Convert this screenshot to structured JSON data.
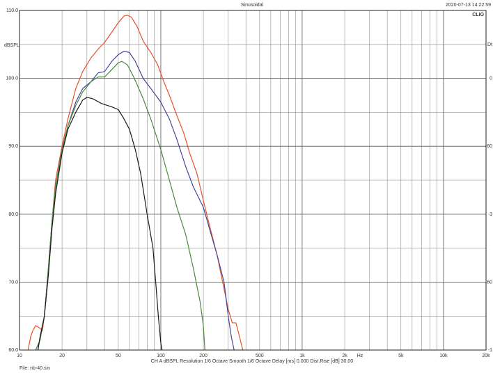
{
  "header": {
    "title": "Sinusoidal",
    "timestamp": "2020-07-13 14:22:59",
    "brand": "CLIO"
  },
  "footer": {
    "settings": "CH A   dBSPL   Resolution 1/6 Octave   Smooth 1/6 Octave   Delay [ms] 0.000   Dist.Rise [dB] 30.00",
    "file": "File: nb-40.sin"
  },
  "chart_data": {
    "type": "line",
    "title": "Sinusoidal",
    "xlabel": "Hz",
    "ylabel": "dBSPL",
    "xscale": "log",
    "xlim": [
      10,
      20000
    ],
    "ylim": [
      60,
      110
    ],
    "grid": true,
    "x_tick_labels": [
      {
        "value": 10,
        "label": "10"
      },
      {
        "value": 20,
        "label": "20"
      },
      {
        "value": 50,
        "label": "50"
      },
      {
        "value": 100,
        "label": "100"
      },
      {
        "value": 200,
        "label": "200"
      },
      {
        "value": 500,
        "label": "500"
      },
      {
        "value": 1000,
        "label": "1k"
      },
      {
        "value": 2000,
        "label": "2k"
      },
      {
        "value": 5000,
        "label": "5k"
      },
      {
        "value": 10000,
        "label": "10k"
      },
      {
        "value": 20000,
        "label": "20k"
      }
    ],
    "y_tick_labels": [
      {
        "value": 60,
        "label": "60.0"
      },
      {
        "value": 70,
        "label": "70.0"
      },
      {
        "value": 80,
        "label": "80.0"
      },
      {
        "value": 90,
        "label": "90.0"
      },
      {
        "value": 100,
        "label": "100.0"
      },
      {
        "value": 110,
        "label": "110.0"
      }
    ],
    "right_axis_labels": [
      {
        "value": 105,
        "label": "Dt"
      },
      {
        "value": 100,
        "label": "0"
      },
      {
        "value": 90,
        "label": "-60"
      },
      {
        "value": 80,
        "label": "-3"
      },
      {
        "value": 70,
        "label": "-60"
      },
      {
        "value": 60,
        "label": "-1"
      }
    ],
    "series": [
      {
        "color": "#e8502a",
        "points": [
          [
            11.5,
            60
          ],
          [
            12,
            62
          ],
          [
            12.5,
            63
          ],
          [
            13,
            63.6
          ],
          [
            14,
            63.2
          ],
          [
            14.5,
            62.8
          ],
          [
            15,
            65
          ],
          [
            16,
            72
          ],
          [
            17,
            79
          ],
          [
            18,
            85
          ],
          [
            20,
            90
          ],
          [
            22,
            94
          ],
          [
            25,
            98.5
          ],
          [
            28,
            101
          ],
          [
            32,
            103
          ],
          [
            36,
            104.3
          ],
          [
            40,
            105.3
          ],
          [
            45,
            106.8
          ],
          [
            50,
            108.2
          ],
          [
            55,
            109.2
          ],
          [
            58,
            109.3
          ],
          [
            62,
            109
          ],
          [
            68,
            107.6
          ],
          [
            75,
            105.5
          ],
          [
            85,
            103.8
          ],
          [
            95,
            102
          ],
          [
            105,
            99.5
          ],
          [
            115,
            97.5
          ],
          [
            130,
            94.5
          ],
          [
            145,
            92
          ],
          [
            160,
            89
          ],
          [
            180,
            86
          ],
          [
            200,
            82
          ],
          [
            220,
            78.5
          ],
          [
            250,
            74
          ],
          [
            280,
            69
          ],
          [
            300,
            66
          ],
          [
            320,
            64
          ],
          [
            340,
            64
          ],
          [
            360,
            62
          ],
          [
            380,
            60
          ]
        ]
      },
      {
        "color": "#45459a",
        "points": [
          [
            13.5,
            60
          ],
          [
            14,
            62
          ],
          [
            15,
            65
          ],
          [
            16,
            72
          ],
          [
            17,
            79
          ],
          [
            18,
            84
          ],
          [
            20,
            89.5
          ],
          [
            22,
            93
          ],
          [
            25,
            96.5
          ],
          [
            28,
            98.5
          ],
          [
            32,
            99.5
          ],
          [
            36,
            100.8
          ],
          [
            40,
            101
          ],
          [
            45,
            102.5
          ],
          [
            50,
            103.5
          ],
          [
            55,
            104
          ],
          [
            60,
            103.8
          ],
          [
            66,
            102.5
          ],
          [
            75,
            100
          ],
          [
            85,
            98.5
          ],
          [
            100,
            96.5
          ],
          [
            115,
            94
          ],
          [
            130,
            91
          ],
          [
            150,
            87
          ],
          [
            170,
            84
          ],
          [
            200,
            81
          ],
          [
            220,
            78
          ],
          [
            250,
            74
          ],
          [
            280,
            70
          ],
          [
            300,
            65
          ],
          [
            315,
            62
          ],
          [
            330,
            60
          ]
        ]
      },
      {
        "color": "#4a8a3a",
        "points": [
          [
            13,
            60
          ],
          [
            14,
            61.5
          ],
          [
            15,
            65
          ],
          [
            16,
            72
          ],
          [
            17,
            79
          ],
          [
            18,
            84
          ],
          [
            20,
            89.5
          ],
          [
            22,
            93
          ],
          [
            25,
            96
          ],
          [
            28,
            98
          ],
          [
            32,
            99.5
          ],
          [
            36,
            100.2
          ],
          [
            40,
            100.2
          ],
          [
            45,
            101.3
          ],
          [
            50,
            102.3
          ],
          [
            53,
            102.5
          ],
          [
            58,
            102
          ],
          [
            65,
            100
          ],
          [
            75,
            97
          ],
          [
            85,
            94
          ],
          [
            100,
            89.5
          ],
          [
            115,
            85
          ],
          [
            130,
            81
          ],
          [
            150,
            77
          ],
          [
            170,
            72
          ],
          [
            190,
            67
          ],
          [
            200,
            63.5
          ],
          [
            205,
            60
          ]
        ]
      },
      {
        "color": "#1a1a1a",
        "points": [
          [
            13.5,
            60
          ],
          [
            14,
            62
          ],
          [
            15,
            65
          ],
          [
            16,
            71
          ],
          [
            17,
            78
          ],
          [
            18,
            83
          ],
          [
            20,
            89
          ],
          [
            22,
            92.5
          ],
          [
            25,
            95
          ],
          [
            28,
            96.8
          ],
          [
            30,
            97.2
          ],
          [
            33,
            97
          ],
          [
            38,
            96.3
          ],
          [
            45,
            95.8
          ],
          [
            50,
            95.4
          ],
          [
            55,
            94
          ],
          [
            60,
            92.5
          ],
          [
            66,
            89.5
          ],
          [
            72,
            86
          ],
          [
            80,
            80
          ],
          [
            88,
            75
          ],
          [
            92,
            70
          ],
          [
            96,
            65
          ],
          [
            100,
            61
          ],
          [
            102,
            60
          ]
        ]
      }
    ]
  }
}
